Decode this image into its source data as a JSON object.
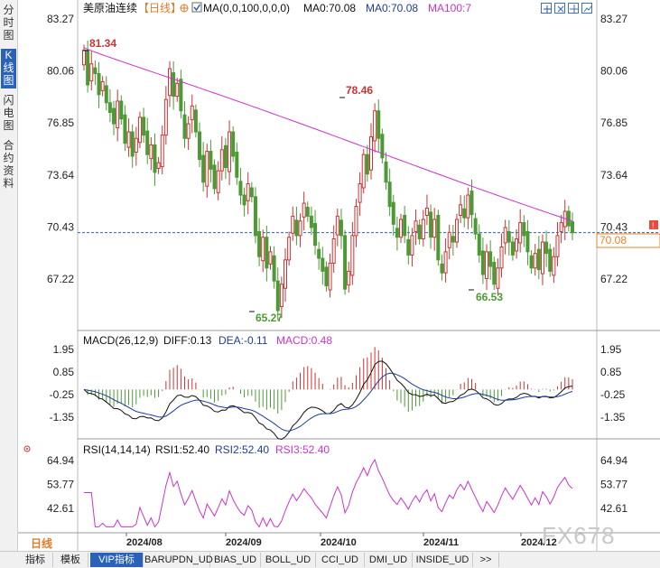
{
  "side_tabs": [
    {
      "label": "分时图",
      "active": false
    },
    {
      "label": "K线图",
      "active": true
    },
    {
      "label": "闪电图",
      "active": false
    },
    {
      "label": "合约资料",
      "active": false
    }
  ],
  "header": {
    "title": "美原油连续",
    "period": "【日线】",
    "ma_label": "MA(0,0,100,0,0,0)",
    "ma0_a": "MA0:70.08",
    "ma0_b": "MA0:70.08",
    "ma100": "MA100:7"
  },
  "toolbar_icons": [
    "zoom-in-icon",
    "zoom-out-icon",
    "grid-icon",
    "chart-type-icon",
    "close-icon"
  ],
  "main_axis": {
    "ticks": [
      "83.27",
      "80.06",
      "76.85",
      "73.64",
      "70.43",
      "67.22"
    ],
    "values": [
      83.27,
      80.06,
      76.85,
      73.64,
      70.43,
      67.22
    ],
    "current": "70.08",
    "current_value": 70.08
  },
  "macd_axis": {
    "ticks": [
      "1.95",
      "0.85",
      "-0.25",
      "-1.35"
    ],
    "values": [
      1.95,
      0.85,
      -0.25,
      -1.35
    ]
  },
  "rsi_axis": {
    "ticks": [
      "64.94",
      "53.77",
      "42.61"
    ],
    "values": [
      64.94,
      53.77,
      42.61
    ]
  },
  "annotations": {
    "high1": "81.34",
    "high2": "78.46",
    "low1": "65.27",
    "low2": "66.53"
  },
  "macd_header": {
    "label": "MACD(26,12,9)",
    "diff": "DIFF:0.13",
    "dea": "DEA:-0.11",
    "macd": "MACD:0.48"
  },
  "rsi_header": {
    "label": "RSI(14,14,14)",
    "rsi1": "RSI1:52.40",
    "rsi2": "RSI2:52.40",
    "rsi3": "RSI3:52.40"
  },
  "x_labels": [
    "2024/08",
    "2024/09",
    "2024/10",
    "2024/11",
    "2024/12"
  ],
  "period_badge": "日线",
  "watermark": "FX678",
  "bottom_tabs": [
    "指标",
    "模板",
    "VIP指标",
    "BARUPDN_UD",
    "BIAS_UD",
    "BOLL_UD",
    "CCI_UD",
    "DMI_UD",
    "INSIDE_UD",
    ">>"
  ],
  "colors": {
    "up": "#cc3333",
    "down": "#4c9a35",
    "ma100": "#cc33cc",
    "dif": "#111111",
    "dea": "#1e3d99",
    "rsi": "#cc33cc",
    "accent": "#e8802a",
    "current_line": "#2a62b8"
  },
  "chart_data": {
    "type": "candlestick",
    "instrument": "美原油连续",
    "period": "日线",
    "x_range": [
      "2024-07",
      "2024-12"
    ],
    "closes": [
      81.34,
      79.2,
      80.5,
      79.9,
      78.6,
      79.4,
      78.1,
      77.5,
      76.8,
      78.2,
      77.1,
      75.6,
      76.3,
      74.8,
      75.9,
      77.2,
      76.1,
      74.9,
      75.5,
      73.8,
      74.4,
      76.1,
      78.3,
      80.2,
      78.5,
      79.3,
      77.6,
      75.9,
      76.8,
      77.9,
      76.3,
      74.6,
      73.2,
      75.1,
      74.0,
      72.8,
      73.9,
      75.2,
      74.1,
      76.3,
      74.8,
      73.5,
      72.4,
      71.8,
      73.1,
      72.3,
      69.9,
      68.6,
      69.8,
      67.9,
      68.9,
      67.1,
      65.27,
      66.9,
      68.4,
      69.8,
      71.1,
      69.9,
      70.8,
      71.9,
      71.1,
      70.4,
      69.3,
      68.5,
      67.7,
      66.8,
      68.2,
      69.7,
      71.1,
      69.9,
      66.6,
      67.7,
      69.9,
      71.7,
      73.1,
      74.9,
      73.7,
      76.0,
      77.6,
      75.9,
      74.7,
      73.2,
      71.7,
      70.6,
      69.8,
      70.9,
      69.9,
      68.7,
      69.9,
      70.8,
      69.7,
      70.9,
      71.6,
      69.8,
      70.9,
      68.4,
      67.6,
      68.9,
      70.1,
      69.5,
      70.9,
      71.8,
      71.0,
      72.4,
      71.2,
      70.0,
      68.7,
      67.5,
      68.9,
      68.0,
      66.9,
      67.9,
      69.2,
      70.4,
      69.5,
      68.7,
      69.7,
      70.7,
      69.9,
      68.9,
      67.9,
      68.8,
      67.8,
      69.5,
      68.8,
      67.7,
      68.6,
      69.9,
      70.7,
      71.4,
      70.5,
      70.08
    ],
    "ma100_endpoints": [
      81.5,
      70.8
    ],
    "annotations": {
      "high1": 81.34,
      "high2": 78.46,
      "low1": 65.27,
      "low2": 66.53
    },
    "last_close": 70.08,
    "macd": {
      "fast": 26,
      "slow": 12,
      "signal": 9,
      "diff": 0.13,
      "dea": -0.11,
      "macd": 0.48,
      "ylim": [
        -1.8,
        2.2
      ]
    },
    "rsi": {
      "periods": [
        14,
        14,
        14
      ],
      "rsi1": 52.4,
      "rsi2": 52.4,
      "rsi3": 52.4,
      "ylim": [
        34,
        70
      ]
    }
  }
}
